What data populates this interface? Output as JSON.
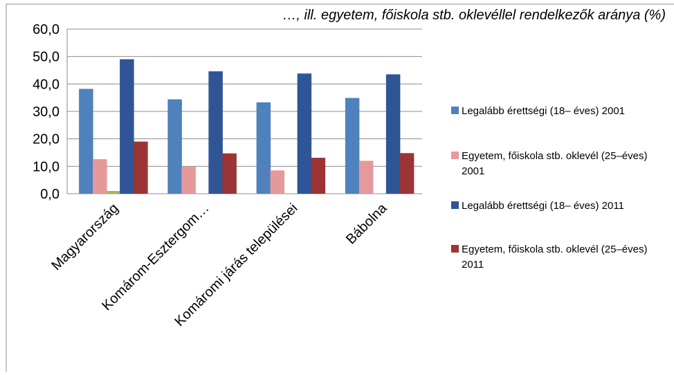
{
  "title_partial": "…, ill. egyetem, főiskola stb. oklevéllel rendelkezők aránya (%)",
  "chart_data": {
    "type": "bar",
    "categories": [
      "Magyarország",
      "Komárom-Esztergom…",
      "Komáromi járás települései",
      "Bábolna"
    ],
    "series": [
      {
        "name": "Legalább érettségi (18– éves) 2001",
        "values": [
          38.2,
          34.4,
          33.3,
          34.9
        ],
        "color": "#4f81bd"
      },
      {
        "name": "Egyetem, főiskola stb. oklevél (25–éves) 2001",
        "values": [
          12.6,
          9.9,
          8.5,
          12.0
        ],
        "color": "#e6999a"
      },
      {
        "name": "",
        "values": [
          1.0,
          0,
          0,
          0
        ],
        "color": "#9bbb59"
      },
      {
        "name": "Legalább érettségi (18– éves) 2011",
        "values": [
          49.0,
          44.6,
          43.8,
          43.5
        ],
        "color": "#2f5597"
      },
      {
        "name": "Egyetem, főiskola stb. oklevél (25–éves) 2011",
        "values": [
          19.0,
          14.7,
          13.1,
          14.8
        ],
        "color": "#9b3535"
      }
    ],
    "ylim": [
      0,
      60
    ],
    "yticks": [
      "0,0",
      "10,0",
      "20,0",
      "30,0",
      "40,0",
      "50,0",
      "60,0"
    ],
    "grid": true,
    "legend_position": "right"
  },
  "legend": {
    "items": [
      {
        "label": "Legalább érettségi (18– éves) 2001",
        "color": "#4f81bd"
      },
      {
        "label": "Egyetem, főiskola stb. oklevél (25–éves) 2001",
        "color": "#e6999a"
      },
      {
        "label": "Legalább érettségi (18– éves) 2011",
        "color": "#2f5597"
      },
      {
        "label": "Egyetem, főiskola stb. oklevél (25–éves) 2011",
        "color": "#9b3535"
      }
    ]
  }
}
